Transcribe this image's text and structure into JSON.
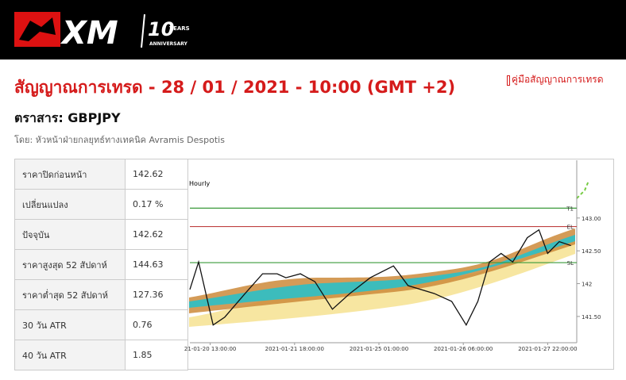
{
  "header": {
    "logo": "XM",
    "anniversary_number": "10",
    "years": "YEARS",
    "anniversary": "ANNIVERSARY"
  },
  "title": "สัญญาณการเทรด - 28 / 01 / 2021 - 10:00 (GMT +2)",
  "guide_link": "คู่มือสัญญาณการเทรด",
  "instrument": "ตราสาร: GBPJPY",
  "author": "โดย: หัวหน้าฝ่ายกลยุทธ์ทางเทคนิค Avramis Despotis",
  "table": {
    "rows": [
      [
        "ราคาปิดก่อนหน้า",
        "142.62"
      ],
      [
        "เปลี่ยนแปลง",
        "0.17 %"
      ],
      [
        "ปัจจุบัน",
        "142.62"
      ],
      [
        "ราคาสูงสุด 52 สัปดาห์",
        "144.63"
      ],
      [
        "ราคาต่ำสุด 52 สัปดาห์",
        "127.36"
      ],
      [
        "30 วัน ATR",
        "0.76"
      ],
      [
        "40 วัน ATR",
        "1.85"
      ]
    ]
  },
  "chart_data": {
    "type": "line",
    "title": "Hourly",
    "color": "#111111",
    "x": [
      0,
      3,
      8,
      12,
      19,
      25,
      30,
      33,
      38,
      43,
      49,
      55,
      62,
      70,
      75,
      84,
      90,
      95,
      99,
      103,
      107,
      111,
      116,
      120,
      123,
      127,
      131
    ],
    "values": [
      141.91,
      142.33,
      141.37,
      141.49,
      141.85,
      142.15,
      142.15,
      142.09,
      142.15,
      142.03,
      141.61,
      141.85,
      142.09,
      142.27,
      141.97,
      141.85,
      141.73,
      141.37,
      141.73,
      142.33,
      142.46,
      142.33,
      142.7,
      142.82,
      142.46,
      142.64,
      142.58
    ],
    "xlim": [
      0,
      133
    ],
    "ylim": [
      141.1,
      143.88
    ],
    "xticks": [
      {
        "value": 7,
        "label": "21-01-20 13:00:00"
      },
      {
        "value": 36,
        "label": "2021-01-21 18:00:00"
      },
      {
        "value": 65,
        "label": "2021-01-25 01:00:00"
      },
      {
        "value": 94,
        "label": "2021-01-26 06:00:00"
      },
      {
        "value": 123,
        "label": "2021-01-27 22:00:00"
      }
    ],
    "yticks": [
      {
        "value": 141.5,
        "label": "141.50"
      },
      142,
      {
        "value": 142.5,
        "label": "142.50"
      },
      {
        "value": 143,
        "label": "143.00"
      }
    ],
    "levels": [
      {
        "name": "T1",
        "value": 143.15,
        "color": "#3a9a3a"
      },
      {
        "name": "EL",
        "value": 142.87,
        "color": "#c04040"
      },
      {
        "name": "SL",
        "value": 142.32,
        "color": "#3a9a3a"
      }
    ]
  }
}
